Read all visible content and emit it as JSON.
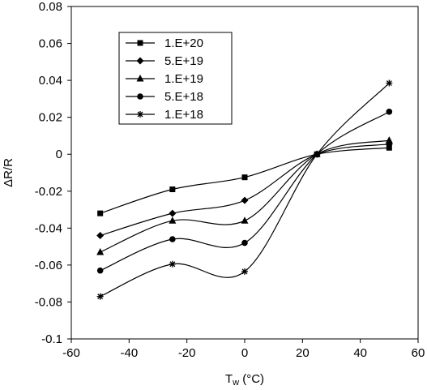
{
  "chart_data": {
    "type": "line",
    "title": "",
    "xlabel": "T",
    "xlabel_sub": "w",
    "xlabel_unit": " (°C)",
    "ylabel": "ΔR/R",
    "xlim": [
      -60,
      60
    ],
    "ylim": [
      -0.1,
      0.08
    ],
    "x_ticks": [
      -60,
      -40,
      -20,
      0,
      20,
      40,
      60
    ],
    "x_tick_labels": [
      "-60",
      "-40",
      "-20",
      "0",
      "20",
      "40",
      "60"
    ],
    "y_ticks": [
      -0.1,
      -0.08,
      -0.06,
      -0.04,
      -0.02,
      0,
      0.02,
      0.04,
      0.06,
      0.08
    ],
    "y_tick_labels": [
      "-0.1",
      "-0.08",
      "-0.06",
      "-0.04",
      "-0.02",
      "0",
      "0.02",
      "0.04",
      "0.06",
      "0.08"
    ],
    "grid": false,
    "legend_position": "top-left",
    "x": [
      -50,
      -25,
      0,
      25,
      50
    ],
    "series": [
      {
        "name": "1.E+20",
        "marker": "square",
        "values": [
          -0.032,
          -0.019,
          -0.0125,
          0.0,
          0.0035
        ]
      },
      {
        "name": "5.E+19",
        "marker": "diamond",
        "values": [
          -0.044,
          -0.032,
          -0.025,
          0.0,
          0.0055
        ]
      },
      {
        "name": "1.E+19",
        "marker": "triangle",
        "values": [
          -0.053,
          -0.036,
          -0.036,
          0.0,
          0.0075
        ]
      },
      {
        "name": "5.E+18",
        "marker": "circle",
        "values": [
          -0.063,
          -0.046,
          -0.048,
          0.0,
          0.023
        ]
      },
      {
        "name": "1.E+18",
        "marker": "star",
        "values": [
          -0.077,
          -0.0595,
          -0.0635,
          0.0,
          0.0385
        ]
      }
    ],
    "colors": {
      "line": "#000000",
      "marker": "#000000",
      "background": "#ffffff"
    }
  }
}
